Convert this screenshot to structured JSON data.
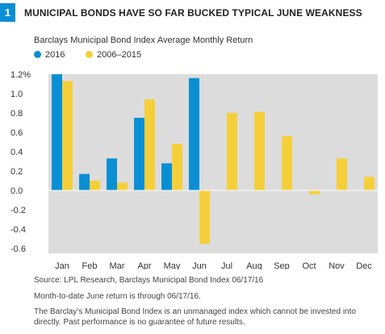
{
  "header": {
    "number": "1",
    "title": "MUNICIPAL BONDS HAVE SO FAR BUCKED TYPICAL JUNE WEAKNESS"
  },
  "colors": {
    "series_2016": "#0a8fd4",
    "series_avg": "#f5cf3a",
    "plot_bg": "#dcdcdc",
    "badge": "#0a8fd4"
  },
  "chart_data": {
    "type": "bar",
    "title": "Barclays Municipal Bond Index Average Monthly Return",
    "categories": [
      "Jan",
      "Feb",
      "Mar",
      "Apr",
      "May",
      "Jun",
      "Jul",
      "Aug",
      "Sep",
      "Oct",
      "Nov",
      "Dec"
    ],
    "series": [
      {
        "name": "2016",
        "values": [
          1.2,
          0.17,
          0.33,
          0.75,
          0.28,
          1.16,
          null,
          null,
          null,
          null,
          null,
          null
        ]
      },
      {
        "name": "2006–2015",
        "values": [
          1.13,
          0.1,
          0.08,
          0.94,
          0.48,
          -0.55,
          0.8,
          0.81,
          0.56,
          -0.04,
          0.33,
          0.14
        ]
      }
    ],
    "ylim": [
      -0.65,
      1.2
    ],
    "yticks": [
      {
        "value": 1.2,
        "label": "1.2%"
      },
      {
        "value": 1.0,
        "label": "1.0"
      },
      {
        "value": 0.8,
        "label": "0.8"
      },
      {
        "value": 0.6,
        "label": "0.6"
      },
      {
        "value": 0.4,
        "label": "0.4"
      },
      {
        "value": 0.2,
        "label": "0.2"
      },
      {
        "value": 0.0,
        "label": "0.0"
      },
      {
        "value": -0.2,
        "label": "-0.2"
      },
      {
        "value": -0.4,
        "label": "-0.4"
      },
      {
        "value": -0.6,
        "label": "-0.6"
      }
    ],
    "legend_position": "top-left",
    "grid": false
  },
  "footnotes": {
    "source": "Source: LPL Research, Barclays Municipal Bond Index 06/17/16",
    "mtd": "Month-to-date June return is through 06/17/16.",
    "disclaimer": "The Barclay’s Municipal Bond Index is an unmanaged index which cannot be invested into directly. Past performance is no guarantee of future results."
  }
}
